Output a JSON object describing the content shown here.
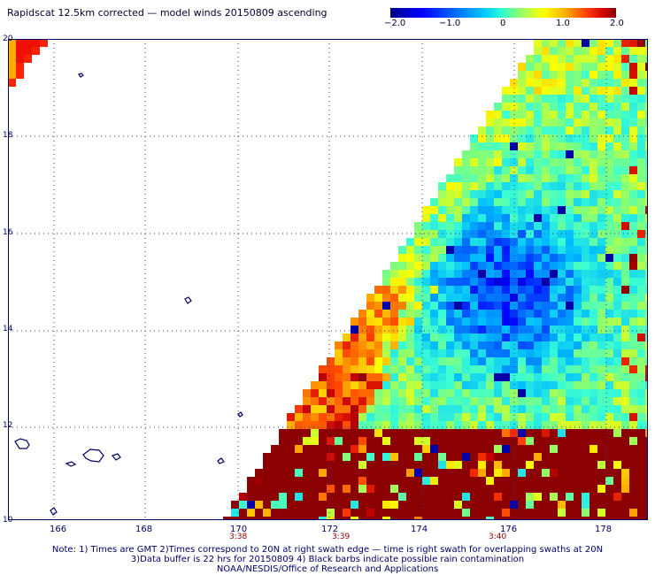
{
  "title": "Rapidscat 12.5km corrected — model winds 20150809 ascending",
  "colorbar": {
    "labels": [
      "−2.0",
      "−1.0",
      "0",
      "1.0",
      "2.0"
    ]
  },
  "lat_labels": [
    "20",
    "18",
    "16",
    "14",
    "12",
    "10"
  ],
  "lon_labels": [
    "166",
    "168",
    "170",
    "172",
    "174",
    "176",
    "178"
  ],
  "time_labels": [
    "3:38",
    "3:39",
    "3:40"
  ],
  "notes": [
    "Note: 1) Times are GMT 2)Times correspond to 20N at right swath edge — time is right swath for overlapping swaths at 20N",
    "3)Data buffer is 22 hrs for 20150809 4) Black barbs indicate possible rain contamination",
    "NOAA/NESDIS/Office of Research and Applications"
  ],
  "colors": {
    "frame": "#000066",
    "grid": "#4444aa",
    "coast": "#000066"
  }
}
